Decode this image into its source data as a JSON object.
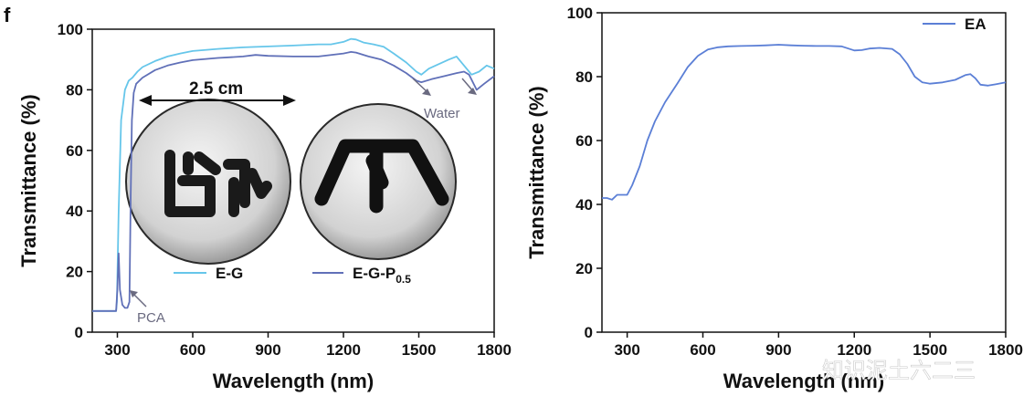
{
  "panel_letter": "f",
  "watermark": "知识泥土六二三",
  "colors": {
    "eg": "#66c6ea",
    "egp": "#6070b8",
    "ea": "#5b7fd6",
    "annot": "#6a6a80"
  },
  "chart_data": [
    {
      "type": "line",
      "xlabel": "Wavelength (nm)",
      "ylabel": "Transmittance (%)",
      "xlim": [
        200,
        1800
      ],
      "ylim": [
        0,
        100
      ],
      "xticks": [
        300,
        600,
        900,
        1200,
        1500,
        1800
      ],
      "yticks": [
        0,
        20,
        40,
        60,
        80,
        100
      ],
      "grid": false,
      "legend": "bottom-center",
      "series": [
        {
          "name": "E-G",
          "color": "#66c6ea",
          "x": [
            200,
            295,
            298,
            305,
            315,
            330,
            345,
            360,
            380,
            400,
            450,
            500,
            550,
            600,
            700,
            800,
            900,
            1000,
            1100,
            1150,
            1200,
            1230,
            1250,
            1280,
            1320,
            1360,
            1400,
            1450,
            1490,
            1510,
            1540,
            1580,
            1620,
            1650,
            1680,
            1710,
            1740,
            1770,
            1800
          ],
          "y": [
            7,
            7,
            10,
            40,
            70,
            80,
            83,
            84,
            86,
            87.5,
            89.5,
            91,
            92,
            92.8,
            93.5,
            94,
            94.3,
            94.6,
            95,
            95,
            95.8,
            96.8,
            96.6,
            95.6,
            95,
            94.2,
            92,
            89,
            86,
            85,
            87,
            88.5,
            90,
            91,
            88,
            85,
            86,
            88,
            87
          ]
        },
        {
          "name": "E-G-P",
          "name_subscript": "0.5",
          "color": "#6070b8",
          "x": [
            200,
            295,
            300,
            305,
            310,
            320,
            330,
            340,
            348,
            353,
            358,
            365,
            375,
            400,
            450,
            500,
            550,
            600,
            700,
            800,
            850,
            900,
            1000,
            1100,
            1200,
            1230,
            1250,
            1300,
            1350,
            1400,
            1450,
            1490,
            1510,
            1550,
            1600,
            1650,
            1680,
            1700,
            1730,
            1760,
            1800
          ],
          "y": [
            7,
            7,
            14,
            26,
            14,
            9,
            8,
            8,
            10,
            45,
            70,
            79,
            82,
            84,
            86.5,
            88,
            89,
            89.8,
            90.5,
            91,
            91.5,
            91.2,
            91,
            91,
            92,
            92.5,
            92.3,
            91,
            90,
            88,
            85.5,
            83,
            82.5,
            83.5,
            84.5,
            85.5,
            86,
            85,
            80,
            82,
            84.5
          ]
        }
      ],
      "annotations": [
        "PCA",
        "Water"
      ],
      "scale_bar": "2.5 cm",
      "sample_photos": 2
    },
    {
      "type": "line",
      "xlabel": "Wavelength (nm)",
      "ylabel": "Transmittance (%)",
      "xlim": [
        200,
        1800
      ],
      "ylim": [
        0,
        100
      ],
      "xticks": [
        300,
        600,
        900,
        1200,
        1500,
        1800
      ],
      "yticks": [
        0,
        20,
        40,
        60,
        80,
        100
      ],
      "grid": false,
      "legend": "top-right",
      "series": [
        {
          "name": "EA",
          "color": "#5b7fd6",
          "x": [
            200,
            220,
            240,
            260,
            280,
            300,
            320,
            350,
            380,
            410,
            450,
            500,
            540,
            580,
            620,
            660,
            700,
            750,
            800,
            850,
            900,
            950,
            1000,
            1050,
            1100,
            1150,
            1200,
            1230,
            1260,
            1300,
            1350,
            1380,
            1410,
            1440,
            1470,
            1500,
            1550,
            1600,
            1640,
            1660,
            1680,
            1700,
            1730,
            1760,
            1800
          ],
          "y": [
            42,
            42,
            41.5,
            43,
            43,
            43,
            46,
            52,
            60,
            66,
            72,
            78,
            83,
            86.5,
            88.5,
            89.2,
            89.5,
            89.6,
            89.7,
            89.8,
            90,
            89.8,
            89.7,
            89.6,
            89.6,
            89.5,
            88.2,
            88.3,
            88.8,
            89,
            88.7,
            87,
            84,
            80,
            78.2,
            77.8,
            78.2,
            79,
            80.5,
            80.8,
            79.5,
            77.5,
            77.2,
            77.6,
            78.2
          ]
        }
      ]
    }
  ]
}
